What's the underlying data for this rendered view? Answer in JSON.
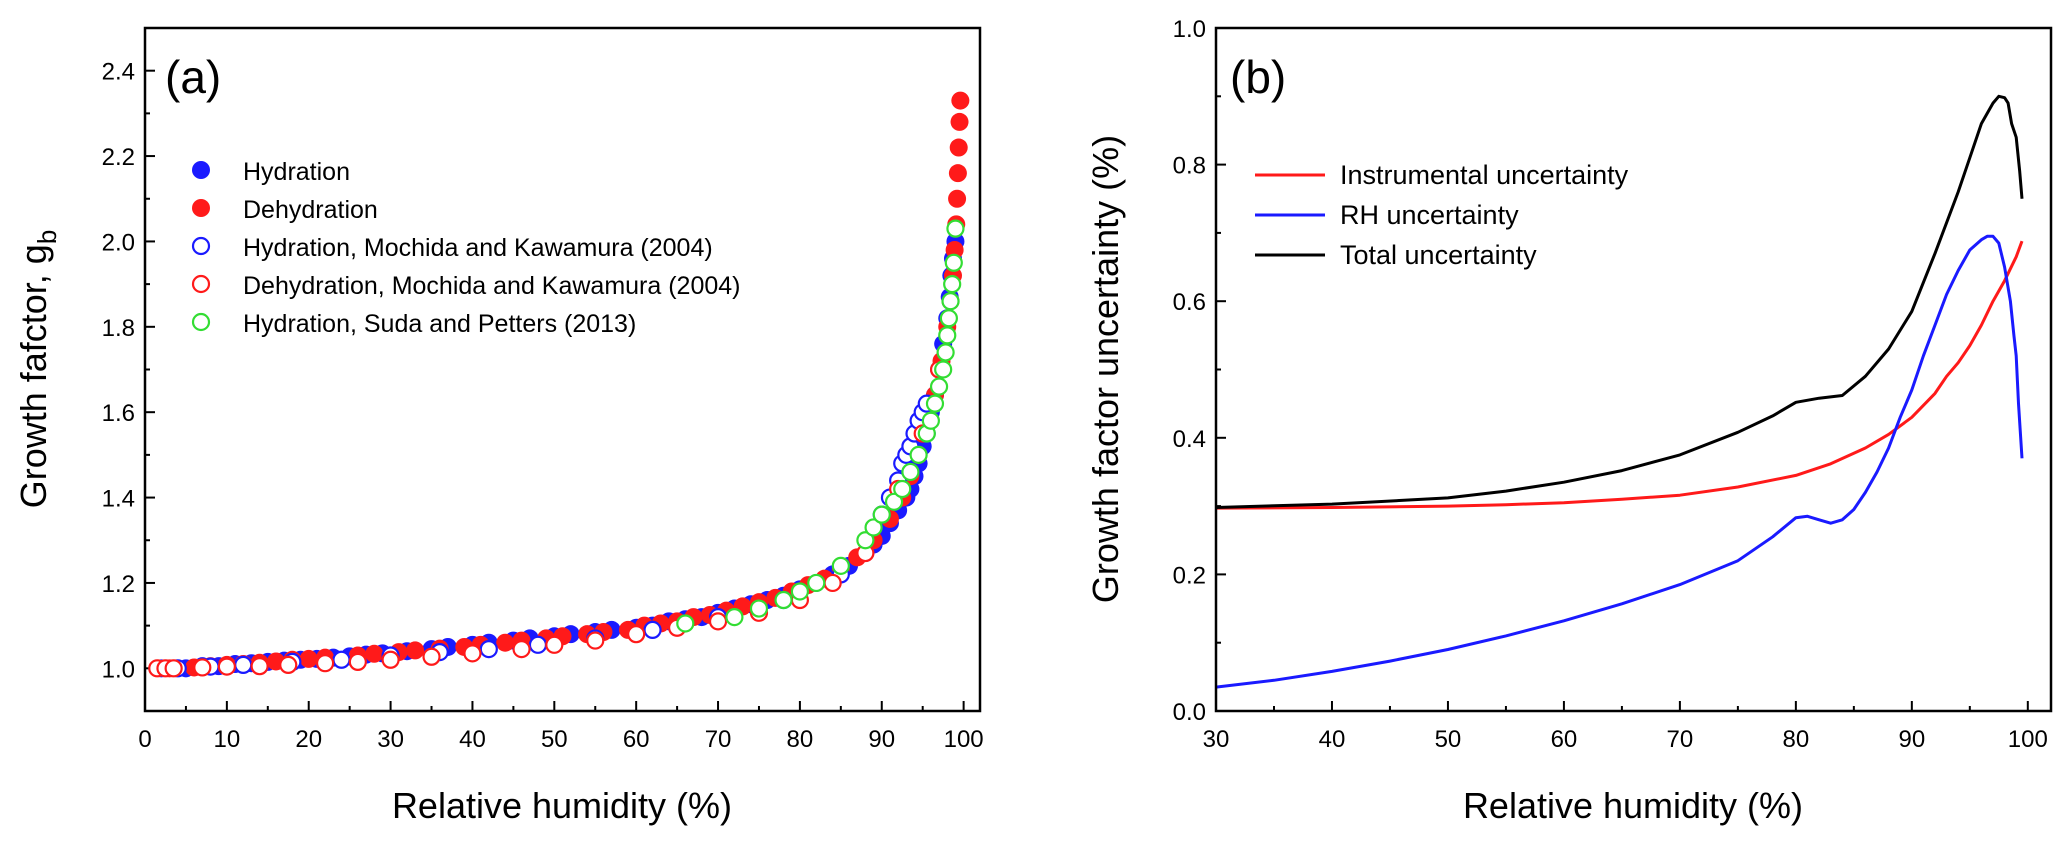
{
  "chart_data": [
    {
      "type": "scatter",
      "panel_label": "(a)",
      "xlabel": "Relative humidity (%)",
      "ylabel": "Growth fafctor, g",
      "ylabel_sub": "b",
      "xlim": [
        0,
        102
      ],
      "ylim": [
        0.9,
        2.5
      ],
      "xticks": [
        0,
        10,
        20,
        30,
        40,
        50,
        60,
        70,
        80,
        90,
        100
      ],
      "yticks": [
        1.0,
        1.2,
        1.4,
        1.6,
        1.8,
        2.0,
        2.2,
        2.4
      ],
      "ytick_labels": [
        "1.0",
        "1.2",
        "1.4",
        "1.6",
        "1.8",
        "2.0",
        "2.2",
        "2.4"
      ],
      "legend_position": "top-left",
      "series": [
        {
          "name": "Hydration",
          "marker": "filled-circle",
          "color": "#1a1aff",
          "x": [
            2,
            5,
            7,
            9,
            11,
            13,
            15,
            17,
            19,
            21,
            23,
            25,
            27,
            29,
            32,
            35,
            37,
            40,
            42,
            45,
            47,
            50,
            52,
            55,
            57,
            60,
            62,
            64,
            66,
            68,
            70,
            72,
            74,
            76,
            78,
            80,
            82,
            84,
            86,
            88,
            89,
            90,
            91,
            92,
            93,
            93.5,
            94,
            94.5,
            95,
            95.5,
            96,
            96.5,
            97,
            97.5,
            98,
            98.3,
            98.5,
            98.7,
            99
          ],
          "y": [
            1.0,
            1.0,
            1.005,
            1.005,
            1.01,
            1.012,
            1.015,
            1.018,
            1.02,
            1.022,
            1.025,
            1.028,
            1.032,
            1.035,
            1.04,
            1.045,
            1.05,
            1.055,
            1.06,
            1.065,
            1.07,
            1.075,
            1.08,
            1.085,
            1.09,
            1.095,
            1.1,
            1.11,
            1.115,
            1.12,
            1.13,
            1.14,
            1.15,
            1.16,
            1.17,
            1.185,
            1.2,
            1.22,
            1.24,
            1.27,
            1.29,
            1.31,
            1.34,
            1.37,
            1.4,
            1.42,
            1.45,
            1.48,
            1.52,
            1.55,
            1.6,
            1.64,
            1.7,
            1.76,
            1.82,
            1.87,
            1.92,
            1.96,
            2.0
          ]
        },
        {
          "name": "Dehydration",
          "marker": "filled-circle",
          "color": "#ff1a1a",
          "x": [
            3,
            6,
            8,
            10,
            12,
            14,
            16,
            18,
            20,
            22,
            26,
            28,
            31,
            33,
            36,
            39,
            41,
            44,
            46,
            49,
            51,
            54,
            56,
            59,
            61,
            63,
            65,
            67,
            69,
            71,
            73,
            75,
            77,
            79,
            81,
            83,
            85,
            87,
            89,
            91,
            92.5,
            93.5,
            94.5,
            95.5,
            96.5,
            97.3,
            98,
            98.4,
            98.7,
            98.9,
            99.1,
            99.2,
            99.3,
            99.4,
            99.5,
            99.6
          ],
          "y": [
            1.0,
            1.002,
            1.005,
            1.008,
            1.01,
            1.013,
            1.016,
            1.02,
            1.022,
            1.025,
            1.03,
            1.034,
            1.038,
            1.042,
            1.046,
            1.05,
            1.055,
            1.06,
            1.065,
            1.07,
            1.075,
            1.08,
            1.085,
            1.09,
            1.1,
            1.105,
            1.11,
            1.12,
            1.125,
            1.135,
            1.145,
            1.155,
            1.165,
            1.18,
            1.195,
            1.21,
            1.23,
            1.26,
            1.3,
            1.35,
            1.4,
            1.45,
            1.5,
            1.57,
            1.64,
            1.72,
            1.8,
            1.86,
            1.92,
            1.98,
            2.04,
            2.1,
            2.16,
            2.22,
            2.28,
            2.33
          ]
        },
        {
          "name": "Hydration, Mochida and Kawamura (2004)",
          "marker": "open-circle",
          "color": "#1a1aff",
          "x": [
            4,
            8,
            12,
            18,
            24,
            30,
            36,
            42,
            48,
            55,
            62,
            70,
            78,
            85,
            90,
            91,
            92,
            92.5,
            93,
            93.5,
            94,
            94.5,
            95,
            95.5
          ],
          "y": [
            1.0,
            1.004,
            1.008,
            1.015,
            1.02,
            1.03,
            1.038,
            1.045,
            1.055,
            1.07,
            1.09,
            1.12,
            1.16,
            1.22,
            1.36,
            1.4,
            1.44,
            1.48,
            1.5,
            1.52,
            1.55,
            1.58,
            1.6,
            1.62
          ]
        },
        {
          "name": "Dehydration, Mochida and Kawamura (2004)",
          "marker": "open-circle",
          "color": "#ff1a1a",
          "x": [
            1.5,
            2.5,
            3.5,
            7,
            10,
            14,
            17.5,
            22,
            26,
            30,
            35,
            40,
            46,
            50,
            55,
            60,
            65,
            70,
            75,
            80,
            84,
            88,
            92,
            95,
            97
          ],
          "y": [
            1.0,
            1.0,
            1.0,
            1.002,
            1.004,
            1.005,
            1.008,
            1.012,
            1.015,
            1.02,
            1.027,
            1.035,
            1.045,
            1.055,
            1.065,
            1.08,
            1.095,
            1.11,
            1.13,
            1.16,
            1.2,
            1.27,
            1.42,
            1.55,
            1.7
          ]
        },
        {
          "name": "Hydration, Suda and Petters (2013)",
          "marker": "open-circle",
          "color": "#33dd33",
          "x": [
            66,
            72,
            75,
            78,
            80,
            82,
            85,
            88,
            89,
            90,
            91.5,
            92.5,
            93.5,
            94.5,
            95.5,
            96,
            96.5,
            97,
            97.5,
            97.8,
            98,
            98.2,
            98.4,
            98.6,
            98.8,
            99
          ],
          "y": [
            1.105,
            1.12,
            1.14,
            1.16,
            1.18,
            1.2,
            1.24,
            1.3,
            1.33,
            1.36,
            1.39,
            1.42,
            1.46,
            1.5,
            1.55,
            1.58,
            1.62,
            1.66,
            1.7,
            1.74,
            1.78,
            1.82,
            1.86,
            1.9,
            1.95,
            2.03
          ]
        }
      ]
    },
    {
      "type": "line",
      "panel_label": "(b)",
      "xlabel": "Relative humidity (%)",
      "ylabel": "Growth factor uncertainty (%)",
      "xlim": [
        30,
        102
      ],
      "ylim": [
        0.0,
        1.0
      ],
      "xticks": [
        30,
        40,
        50,
        60,
        70,
        80,
        90,
        100
      ],
      "yticks": [
        0.0,
        0.2,
        0.4,
        0.6,
        0.8,
        1.0
      ],
      "ytick_labels": [
        "0.0",
        "0.2",
        "0.4",
        "0.6",
        "0.8",
        "1.0"
      ],
      "legend_position": "top-left",
      "series": [
        {
          "name": "Instrumental uncertainty",
          "color": "#ff1a1a",
          "x": [
            30,
            40,
            50,
            55,
            60,
            65,
            70,
            75,
            80,
            83,
            86,
            88,
            90,
            92,
            93,
            94,
            95,
            96,
            97,
            98,
            99,
            99.5
          ],
          "y": [
            0.297,
            0.298,
            0.3,
            0.302,
            0.305,
            0.31,
            0.316,
            0.328,
            0.345,
            0.362,
            0.385,
            0.405,
            0.43,
            0.465,
            0.49,
            0.51,
            0.535,
            0.565,
            0.6,
            0.63,
            0.665,
            0.688
          ]
        },
        {
          "name": "RH uncertainty",
          "color": "#1a1aff",
          "x": [
            30,
            35,
            40,
            45,
            50,
            55,
            60,
            65,
            70,
            75,
            78,
            80,
            81,
            82,
            83,
            84,
            85,
            86,
            87,
            88,
            89,
            90,
            91,
            92,
            93,
            94,
            95,
            96,
            96.5,
            97,
            97.5,
            98,
            98.5,
            98.8,
            99,
            99.2,
            99.5
          ],
          "y": [
            0.035,
            0.045,
            0.058,
            0.073,
            0.09,
            0.11,
            0.132,
            0.157,
            0.185,
            0.22,
            0.255,
            0.283,
            0.285,
            0.28,
            0.275,
            0.28,
            0.295,
            0.32,
            0.35,
            0.385,
            0.43,
            0.47,
            0.52,
            0.565,
            0.61,
            0.645,
            0.675,
            0.69,
            0.695,
            0.695,
            0.685,
            0.65,
            0.6,
            0.55,
            0.52,
            0.45,
            0.37
          ]
        },
        {
          "name": "Total uncertainty",
          "color": "#000000",
          "x": [
            30,
            40,
            50,
            55,
            60,
            65,
            70,
            75,
            78,
            80,
            82,
            84,
            86,
            88,
            90,
            92,
            94,
            95,
            96,
            97,
            97.5,
            98,
            98.3,
            98.6,
            99,
            99.3,
            99.5
          ],
          "y": [
            0.298,
            0.303,
            0.312,
            0.322,
            0.335,
            0.352,
            0.375,
            0.408,
            0.432,
            0.452,
            0.458,
            0.462,
            0.49,
            0.53,
            0.585,
            0.67,
            0.76,
            0.81,
            0.86,
            0.89,
            0.9,
            0.898,
            0.89,
            0.86,
            0.84,
            0.79,
            0.75
          ]
        }
      ]
    }
  ]
}
